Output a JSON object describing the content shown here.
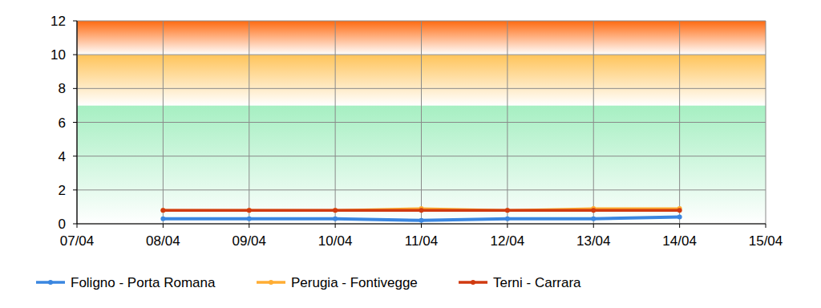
{
  "chart_data": {
    "type": "line",
    "categories": [
      "07/04",
      "08/04",
      "09/04",
      "10/04",
      "11/04",
      "12/04",
      "13/04",
      "14/04",
      "15/04"
    ],
    "series": [
      {
        "name": "Foligno - Porta Romana",
        "color": "#3a86e0",
        "marker": "circle",
        "values": [
          null,
          0.3,
          0.3,
          0.3,
          0.2,
          0.3,
          0.3,
          0.4,
          null
        ]
      },
      {
        "name": "Perugia - Fontivegge",
        "color": "#ffad33",
        "marker": "circle",
        "values": [
          null,
          0.8,
          0.8,
          0.8,
          0.9,
          0.8,
          0.9,
          0.9,
          null
        ]
      },
      {
        "name": "Terni - Carrara",
        "color": "#d03a10",
        "marker": "circle",
        "values": [
          null,
          0.8,
          0.8,
          0.8,
          0.8,
          0.8,
          0.8,
          0.8,
          null
        ]
      }
    ],
    "ylim": [
      0,
      12
    ],
    "yticks": [
      0,
      2,
      4,
      6,
      8,
      10,
      12
    ],
    "grid": true,
    "legend": "bottom",
    "bands": [
      {
        "from": 0,
        "to": 7,
        "color": "#a6efc2"
      },
      {
        "from": 7,
        "to": 10,
        "color": "#ffc45a"
      },
      {
        "from": 10,
        "to": 12,
        "color": "#ff6a10"
      }
    ]
  }
}
